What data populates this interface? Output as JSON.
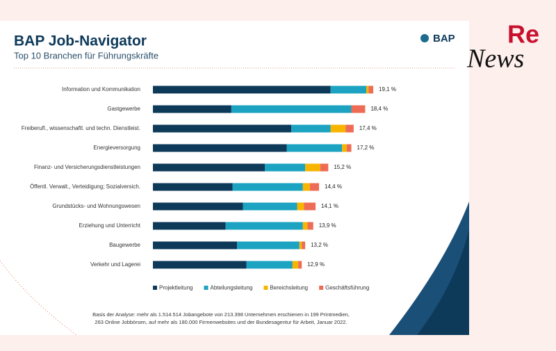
{
  "chart_data": {
    "type": "stacked-bar-horizontal",
    "title": "BAP Job-Navigator",
    "subtitle": "Top 10 Branchen für Führungskräfte",
    "categories": [
      "Information und Kommunikation",
      "Gastgewerbe",
      "Freiberufl., wissenschaftl. und techn. Dienstleist.",
      "Energieversorgung",
      "Finanz- und Versicherungsdienstleistungen",
      "Öffentl. Verwalt., Verteidigung; Sozialversich.",
      "Grundstücks- und Wohnungswesen",
      "Erziehung und Unterricht",
      "Baugewerbe",
      "Verkehr und Lagerei"
    ],
    "series": [
      {
        "name": "Projektleitung",
        "color": "#0e3a5a",
        "values": [
          15.4,
          6.8,
          12.0,
          11.6,
          9.7,
          6.9,
          7.8,
          6.3,
          7.3,
          8.1
        ]
      },
      {
        "name": "Abteilungsleitung",
        "color": "#1ba3c1",
        "values": [
          3.1,
          10.4,
          3.4,
          4.8,
          3.5,
          6.1,
          4.7,
          6.7,
          5.4,
          4.0
        ]
      },
      {
        "name": "Bereichsleitung",
        "color": "#f7b500",
        "values": [
          0.2,
          0,
          1.3,
          0.4,
          1.3,
          0.6,
          0.6,
          0.4,
          0.2,
          0.5
        ]
      },
      {
        "name": "Geschäftsführung",
        "color": "#ee6c55",
        "values": [
          0.4,
          1.2,
          0.7,
          0.4,
          0.7,
          0.8,
          1.0,
          0.5,
          0.3,
          0.3
        ]
      }
    ],
    "totals": [
      19.1,
      18.4,
      17.4,
      17.2,
      15.2,
      14.4,
      14.1,
      13.9,
      13.2,
      12.9
    ],
    "total_labels": [
      "19,1 %",
      "18,4 %",
      "17,4 %",
      "17,2 %",
      "15,2 %",
      "14,4 %",
      "14,1 %",
      "13,9 %",
      "13,2 %",
      "12,9 %"
    ],
    "xlim": [
      0,
      20
    ]
  },
  "logo": "BAP",
  "footnote": [
    "Basis der Analyse: mehr als 1.514.514 Jobangebote von 213.398 Unternehmen erschienen in 199 Printmedien,",
    "263 Online Jobbörsen, auf mehr als 180.000 Firmenwebsites und der Bundesagentur für Arbeit, Januar 2022."
  ],
  "site_logo": {
    "top": "Re",
    "bottom": "News"
  }
}
